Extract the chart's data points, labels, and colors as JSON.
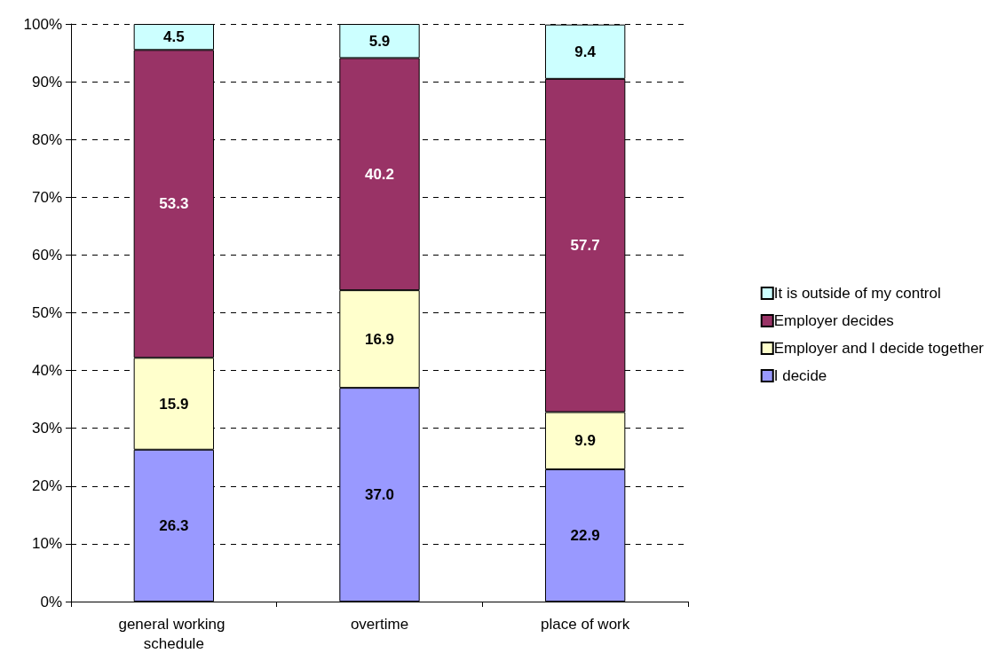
{
  "chart_data": {
    "type": "bar",
    "stacked": true,
    "categories": [
      "general working schedule",
      "overtime",
      "place of work"
    ],
    "series": [
      {
        "name": "I decide",
        "color": "#9999ff",
        "values": [
          26.3,
          37.0,
          22.9
        ],
        "value_labels": [
          "26.3",
          "37.0",
          "22.9"
        ]
      },
      {
        "name": "Employer and I decide together",
        "color": "#ffffcc",
        "values": [
          15.9,
          16.9,
          9.9
        ],
        "value_labels": [
          "15.9",
          "16.9",
          "9.9"
        ]
      },
      {
        "name": "Employer decides",
        "color": "#993366",
        "values": [
          53.3,
          40.2,
          57.7
        ],
        "value_labels": [
          "53.3",
          "40.2",
          "57.7"
        ]
      },
      {
        "name": "It is outside of my control",
        "color": "#ccffff",
        "values": [
          4.5,
          5.9,
          9.4
        ],
        "value_labels": [
          "4.5",
          "5.9",
          "9.4"
        ]
      }
    ],
    "ylim": [
      0,
      100
    ],
    "yticks": [
      {
        "value": 0,
        "label": "0%"
      },
      {
        "value": 10,
        "label": "10%"
      },
      {
        "value": 20,
        "label": "20%"
      },
      {
        "value": 30,
        "label": "30%"
      },
      {
        "value": 40,
        "label": "40%"
      },
      {
        "value": 50,
        "label": "50%"
      },
      {
        "value": 60,
        "label": "60%"
      },
      {
        "value": 70,
        "label": "70%"
      },
      {
        "value": 80,
        "label": "80%"
      },
      {
        "value": 90,
        "label": "90%"
      },
      {
        "value": 100,
        "label": "100%"
      }
    ],
    "grid": "y",
    "legend": "right"
  }
}
